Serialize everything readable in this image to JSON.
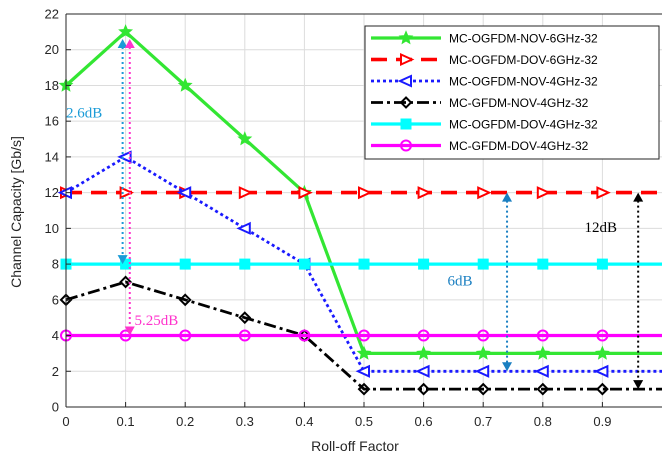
{
  "chart_data": {
    "type": "line",
    "xlabel": "Roll-off Factor",
    "ylabel": "Channel Capacity [Gb/s]",
    "xlim": [
      0,
      1
    ],
    "ylim": [
      0,
      22
    ],
    "xticks": [
      0,
      0.1,
      0.2,
      0.3,
      0.4,
      0.5,
      0.6,
      0.7,
      0.8,
      0.9
    ],
    "yticks": [
      0,
      2,
      4,
      6,
      8,
      10,
      12,
      14,
      16,
      18,
      20,
      22
    ],
    "grid": true,
    "legend_position": "top-right",
    "x": [
      0,
      0.1,
      0.2,
      0.3,
      0.4,
      0.5,
      0.6,
      0.7,
      0.8,
      0.9,
      1.0
    ],
    "series": [
      {
        "name": "MC-OGFDM-NOV-6GHz-32",
        "color": "#33e633",
        "dash": "solid",
        "marker": "star",
        "values": [
          18,
          21,
          18,
          15,
          12,
          3,
          3,
          3,
          3,
          3,
          3
        ]
      },
      {
        "name": "MC-OGFDM-DOV-6GHz-32",
        "color": "#ff0000",
        "dash": "dashed",
        "marker": "triangle-right",
        "values": [
          12,
          12,
          12,
          12,
          12,
          12,
          12,
          12,
          12,
          12,
          12
        ]
      },
      {
        "name": "MC-OGFDM-NOV-4GHz-32",
        "color": "#1a1aff",
        "dash": "dotted",
        "marker": "triangle-left",
        "values": [
          12,
          14,
          12,
          10,
          8,
          2,
          2,
          2,
          2,
          2,
          2
        ]
      },
      {
        "name": "MC-GFDM-NOV-4GHz-32",
        "color": "#000000",
        "dash": "dashdot",
        "marker": "diamond",
        "values": [
          6,
          7,
          6,
          5,
          4,
          1,
          1,
          1,
          1,
          1,
          1
        ]
      },
      {
        "name": "MC-OGFDM-DOV-4GHz-32",
        "color": "#00ffff",
        "dash": "solid",
        "marker": "square",
        "values": [
          8,
          8,
          8,
          8,
          8,
          8,
          8,
          8,
          8,
          8,
          8
        ]
      },
      {
        "name": "MC-GFDM-DOV-4GHz-32",
        "color": "#ff00ff",
        "dash": "solid",
        "marker": "circle",
        "values": [
          4,
          4,
          4,
          4,
          4,
          4,
          4,
          4,
          4,
          4,
          4
        ]
      }
    ],
    "annotations": [
      {
        "text": "2.6dB",
        "color": "#1a9bd7",
        "x1": 0.095,
        "y1": 8,
        "x2": 0.095,
        "y2": 20.6,
        "label_x": 0.0,
        "label_y": 16.2
      },
      {
        "text": "5.25dB",
        "color": "#ff33cc",
        "x1": 0.107,
        "y1": 4,
        "x2": 0.107,
        "y2": 20.6,
        "label_x": 0.115,
        "label_y": 4.6
      },
      {
        "text": "6dB",
        "color": "#1a7fc1",
        "x1": 0.74,
        "y1": 2,
        "x2": 0.74,
        "y2": 12,
        "label_x": 0.64,
        "label_y": 6.8
      },
      {
        "text": "12dB",
        "color": "#000000",
        "x1": 0.96,
        "y1": 1,
        "x2": 0.96,
        "y2": 12,
        "label_x": 0.87,
        "label_y": 9.8
      }
    ]
  }
}
